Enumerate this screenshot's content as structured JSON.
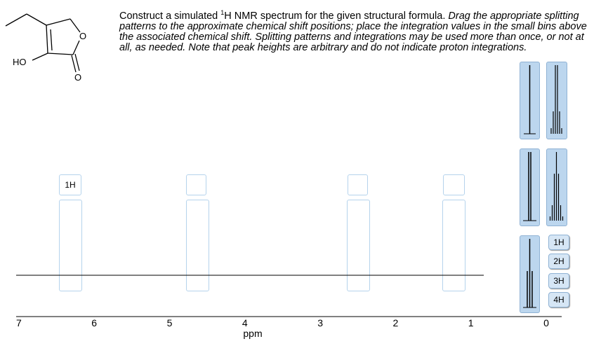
{
  "molecule": {
    "atom_labels": [
      "HO",
      "O",
      "O"
    ]
  },
  "instructions": {
    "lead_before": "Construct a simulated ",
    "lead_sup": "1",
    "lead_after": "H NMR spectrum for the given structural formula.",
    "italic": "Drag the appropriate splitting patterns to the approximate chemical shift positions; place the integration values in the small bins above the associated chemical shift. Splitting patterns and integrations may be used more than once, or not at all, as needed. Note that peak heights are arbitrary and do not indicate proton integrations."
  },
  "spectrum": {
    "placed_integration": "1H"
  },
  "axis": {
    "ticks": [
      7,
      6,
      5,
      4,
      3,
      2,
      1,
      0
    ],
    "label": "ppm"
  },
  "integration_palette": [
    "1H",
    "2H",
    "3H",
    "4H"
  ]
}
